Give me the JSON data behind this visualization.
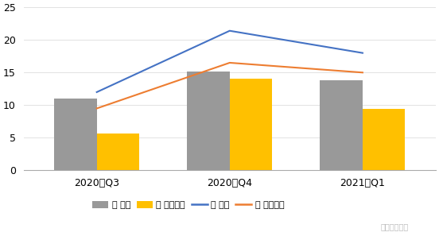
{
  "categories": [
    "2020年Q3",
    "2020年Q4",
    "2021年Q1"
  ],
  "bar_zhuang_sanyuan": [
    11.0,
    15.2,
    13.8
  ],
  "bar_zhuang_lithium": [
    5.7,
    14.0,
    9.4
  ],
  "line_chan_sanyuan": [
    12.0,
    21.4,
    18.0
  ],
  "line_chan_lithium": [
    9.5,
    16.5,
    15.0
  ],
  "bar_zhuang_sanyuan_color": "#999999",
  "bar_zhuang_lithium_color": "#FFC000",
  "line_chan_sanyuan_color": "#4472C4",
  "line_chan_lithium_color": "#ED7D31",
  "legend_labels": [
    "装 三元",
    "装 磷酸铁锂",
    "产 三元",
    "产 磷酸铁锂"
  ],
  "ylim": [
    0,
    25
  ],
  "yticks": [
    0,
    5,
    10,
    15,
    20,
    25
  ],
  "bar_width": 0.32,
  "background_color": "#FFFFFF",
  "watermark": "汽车电子设计",
  "font_size": 9
}
